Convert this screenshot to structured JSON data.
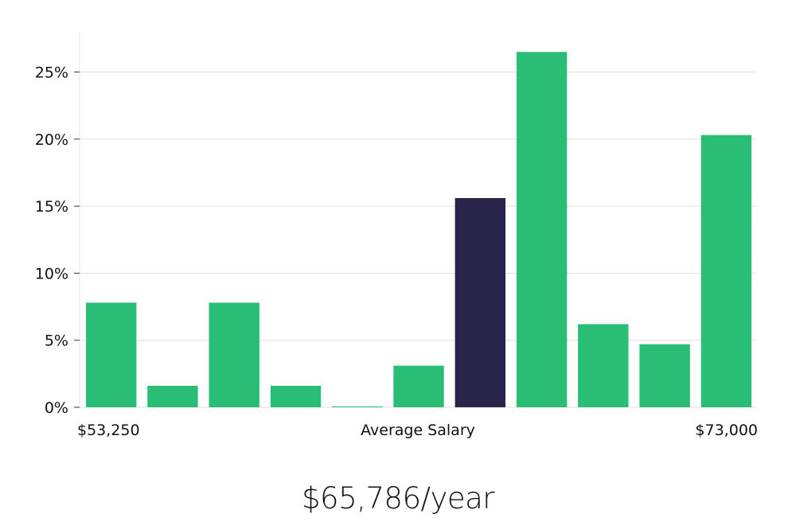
{
  "chart_data": {
    "type": "bar",
    "title": "",
    "xlabel": "Average Salary",
    "ylabel": "",
    "x_min_label": "$53,250",
    "x_max_label": "$73,000",
    "categories": [
      "1",
      "2",
      "3",
      "4",
      "5",
      "6",
      "7",
      "8",
      "9",
      "10",
      "11"
    ],
    "values": [
      7.8,
      1.6,
      7.8,
      1.6,
      0.05,
      3.1,
      15.6,
      26.5,
      6.2,
      4.7,
      20.3
    ],
    "highlight_index": 6,
    "ylim": [
      0,
      28
    ],
    "yticks": [
      0,
      5,
      10,
      15,
      20,
      25
    ],
    "ytick_labels": [
      "0%",
      "5%",
      "10%",
      "15%",
      "20%",
      "25%"
    ],
    "grid": true,
    "colors": {
      "bar": "#2abd76",
      "highlight": "#29254a"
    }
  },
  "summary": {
    "salary": "$65,786/year"
  }
}
